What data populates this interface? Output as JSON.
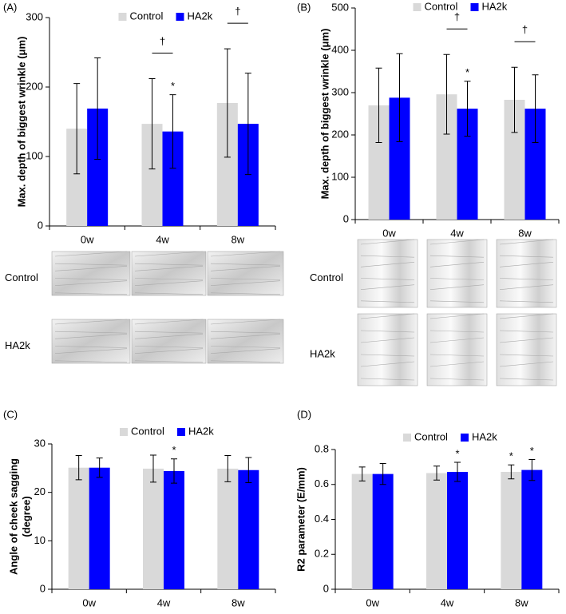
{
  "chart_data": [
    {
      "type": "bar",
      "panel": "(A)",
      "ylabel": [
        "Max. depth of biggest wrinkle (μm)"
      ],
      "categories": [
        "0w",
        "4w",
        "8w"
      ],
      "series": [
        {
          "name": "Control",
          "color": "#d9d9d9",
          "values": [
            140,
            147,
            177
          ],
          "errors": [
            65,
            65,
            78
          ],
          "markers": [
            null,
            null,
            null
          ]
        },
        {
          "name": "HA2k",
          "color": "#0000ff",
          "values": [
            169,
            136,
            147
          ],
          "errors": [
            73,
            53,
            73
          ],
          "markers": [
            null,
            "*",
            null
          ]
        }
      ],
      "significance": [
        null,
        "†",
        "†"
      ],
      "ylim": [
        0,
        300
      ],
      "yticks": [
        0,
        100,
        200,
        300
      ],
      "legend": "top",
      "image_rows": [
        "Control",
        "HA2k"
      ]
    },
    {
      "type": "bar",
      "panel": "(B)",
      "ylabel": [
        "Max. depth of biggest wrinkle (μm)"
      ],
      "categories": [
        "0w",
        "4w",
        "8w"
      ],
      "series": [
        {
          "name": "Control",
          "color": "#d9d9d9",
          "values": [
            270,
            296,
            283
          ],
          "errors": [
            88,
            94,
            77
          ],
          "markers": [
            null,
            null,
            null
          ]
        },
        {
          "name": "HA2k",
          "color": "#0000ff",
          "values": [
            288,
            262,
            262
          ],
          "errors": [
            104,
            65,
            80
          ],
          "markers": [
            null,
            "*",
            null
          ]
        }
      ],
      "significance": [
        null,
        "†",
        "†"
      ],
      "ylim": [
        0,
        500
      ],
      "yticks": [
        0,
        100,
        200,
        300,
        400,
        500
      ],
      "legend": "top",
      "image_rows": [
        "Control",
        "HA2k"
      ]
    },
    {
      "type": "bar",
      "panel": "(C)",
      "ylabel": [
        "Angle of cheek sagging",
        "(degree)"
      ],
      "categories": [
        "0w",
        "4w",
        "8w"
      ],
      "series": [
        {
          "name": "Control",
          "color": "#d9d9d9",
          "values": [
            25.1,
            24.9,
            24.9
          ],
          "errors": [
            2.5,
            2.8,
            2.7
          ],
          "markers": [
            null,
            null,
            null
          ]
        },
        {
          "name": "HA2k",
          "color": "#0000ff",
          "values": [
            25.1,
            24.4,
            24.6
          ],
          "errors": [
            2.0,
            2.5,
            2.6
          ],
          "markers": [
            null,
            "*",
            null
          ]
        }
      ],
      "significance": [
        null,
        null,
        null
      ],
      "ylim": [
        0,
        30
      ],
      "yticks": [
        0,
        10,
        20,
        30
      ],
      "legend": "top"
    },
    {
      "type": "bar",
      "panel": "(D)",
      "ylabel": [
        "R2 parameter (E/mm)"
      ],
      "categories": [
        "0w",
        "4w",
        "8w"
      ],
      "series": [
        {
          "name": "Control",
          "color": "#d9d9d9",
          "values": [
            0.66,
            0.665,
            0.672
          ],
          "errors": [
            0.04,
            0.04,
            0.04
          ],
          "markers": [
            null,
            null,
            "*"
          ]
        },
        {
          "name": "HA2k",
          "color": "#0000ff",
          "values": [
            0.66,
            0.672,
            0.683
          ],
          "errors": [
            0.06,
            0.055,
            0.06
          ],
          "markers": [
            null,
            "*",
            "*"
          ]
        }
      ],
      "significance": [
        null,
        null,
        null
      ],
      "ylim": [
        0,
        0.8
      ],
      "yticks": [
        0,
        0.2,
        0.4,
        0.6,
        0.8
      ],
      "legend": "top"
    }
  ]
}
